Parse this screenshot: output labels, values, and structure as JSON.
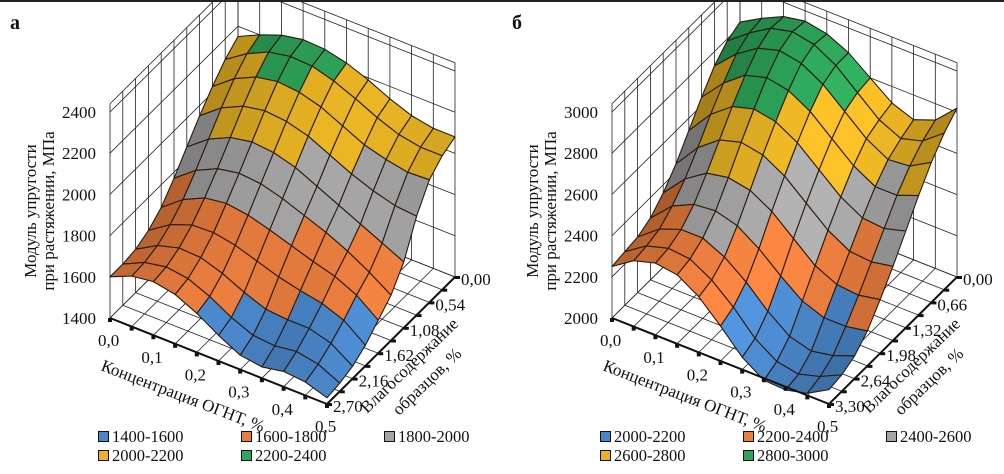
{
  "chart_data": [
    {
      "type": "surface3d",
      "panel_label": "а",
      "title": "",
      "xlabel": "Концентрация ОГНТ, %",
      "ylabel": "Влагосодержание образцов, %",
      "zlabel_line1": "Модуль упругости",
      "zlabel_line2": "при растяжении, МПа",
      "x_ticks": [
        "0,0",
        "0,1",
        "0,2",
        "0,3",
        "0,4",
        "0,5"
      ],
      "y_ticks": [
        "0,00",
        "0,54",
        "1,08",
        "1,62",
        "2,16",
        "2,70"
      ],
      "z_ticks": [
        "1400",
        "1600",
        "1800",
        "2000",
        "2200",
        "2400"
      ],
      "xlim": [
        0,
        0.5
      ],
      "ylim": [
        0,
        2.7
      ],
      "zlim": [
        1400,
        2400
      ],
      "legend": [
        {
          "label": "1400-1600",
          "color": "#4a86c8"
        },
        {
          "label": "1600-1800",
          "color": "#e87d3e"
        },
        {
          "label": "1800-2000",
          "color": "#a5a5a5"
        },
        {
          "label": "2000-2200",
          "color": "#e8b424"
        },
        {
          "label": "2200-2400",
          "color": "#2ea65a"
        }
      ],
      "x": [
        0,
        0.05,
        0.1,
        0.15,
        0.2,
        0.25,
        0.3,
        0.35,
        0.4,
        0.45,
        0.5
      ],
      "y": [
        0,
        0.27,
        0.54,
        0.81,
        1.08,
        1.35,
        1.62,
        1.89,
        2.16,
        2.43,
        2.7
      ],
      "z": [
        [
          2150,
          2200,
          2240,
          2260,
          2255,
          2230,
          2190,
          2140,
          2100,
          2080,
          2080
        ],
        [
          2100,
          2170,
          2220,
          2240,
          2235,
          2205,
          2160,
          2110,
          2070,
          2050,
          2050
        ],
        [
          2030,
          2110,
          2160,
          2180,
          2170,
          2140,
          2090,
          2040,
          2010,
          1990,
          1995
        ],
        [
          1950,
          2030,
          2080,
          2100,
          2090,
          2060,
          2010,
          1960,
          1920,
          1890,
          1880
        ],
        [
          1860,
          1940,
          1990,
          2010,
          2000,
          1970,
          1920,
          1870,
          1820,
          1770,
          1720
        ],
        [
          1770,
          1850,
          1900,
          1920,
          1910,
          1880,
          1840,
          1800,
          1750,
          1690,
          1620
        ],
        [
          1690,
          1770,
          1820,
          1835,
          1820,
          1790,
          1755,
          1720,
          1690,
          1640,
          1560
        ],
        [
          1640,
          1710,
          1750,
          1755,
          1735,
          1700,
          1665,
          1640,
          1620,
          1580,
          1500
        ],
        [
          1610,
          1670,
          1700,
          1695,
          1660,
          1610,
          1570,
          1560,
          1560,
          1530,
          1460
        ],
        [
          1600,
          1650,
          1670,
          1655,
          1610,
          1550,
          1505,
          1495,
          1510,
          1490,
          1440
        ],
        [
          1600,
          1645,
          1660,
          1640,
          1590,
          1525,
          1470,
          1455,
          1475,
          1465,
          1430
        ]
      ]
    },
    {
      "type": "surface3d",
      "panel_label": "б",
      "title": "",
      "xlabel": "Концентрация ОГНТ, %",
      "ylabel": "Влагосодержание образцов, %",
      "zlabel_line1": "Модуль упругости",
      "zlabel_line2": "при растяжении, МПа",
      "x_ticks": [
        "0,0",
        "0,1",
        "0,2",
        "0,3",
        "0,4",
        "0,5"
      ],
      "y_ticks": [
        "0,00",
        "0,66",
        "1,32",
        "1,98",
        "2,64",
        "3,30"
      ],
      "z_ticks": [
        "2000",
        "2200",
        "2400",
        "2600",
        "2800",
        "3000"
      ],
      "xlim": [
        0,
        0.5
      ],
      "ylim": [
        0,
        3.3
      ],
      "zlim": [
        2000,
        3000
      ],
      "legend": [
        {
          "label": "2000-2200",
          "color": "#4a86c8"
        },
        {
          "label": "2200-2400",
          "color": "#e87d3e"
        },
        {
          "label": "2400-2600",
          "color": "#a5a5a5"
        },
        {
          "label": "2600-2800",
          "color": "#e8b424"
        },
        {
          "label": "2800-3000",
          "color": "#2ea65a"
        }
      ],
      "x": [
        0,
        0.05,
        0.1,
        0.15,
        0.2,
        0.25,
        0.3,
        0.35,
        0.4,
        0.45,
        0.5
      ],
      "y": [
        0,
        0.33,
        0.66,
        0.99,
        1.32,
        1.65,
        1.98,
        2.31,
        2.64,
        2.97,
        3.3
      ],
      "z": [
        [
          2820,
          2880,
          2930,
          2950,
          2930,
          2880,
          2800,
          2720,
          2680,
          2720,
          2820
        ],
        [
          2790,
          2870,
          2935,
          2960,
          2940,
          2880,
          2790,
          2700,
          2650,
          2680,
          2760
        ],
        [
          2730,
          2830,
          2900,
          2930,
          2910,
          2850,
          2760,
          2670,
          2610,
          2620,
          2680
        ],
        [
          2640,
          2750,
          2830,
          2860,
          2840,
          2780,
          2690,
          2600,
          2540,
          2540,
          2580
        ],
        [
          2540,
          2660,
          2740,
          2770,
          2750,
          2690,
          2600,
          2510,
          2450,
          2440,
          2470
        ],
        [
          2440,
          2560,
          2640,
          2670,
          2650,
          2590,
          2500,
          2410,
          2350,
          2340,
          2360
        ],
        [
          2360,
          2470,
          2540,
          2560,
          2540,
          2480,
          2390,
          2300,
          2250,
          2240,
          2260
        ],
        [
          2300,
          2400,
          2450,
          2460,
          2430,
          2360,
          2270,
          2190,
          2150,
          2150,
          2170
        ],
        [
          2270,
          2350,
          2390,
          2390,
          2340,
          2260,
          2160,
          2080,
          2050,
          2070,
          2110
        ],
        [
          2260,
          2330,
          2360,
          2350,
          2290,
          2200,
          2090,
          2020,
          2000,
          2030,
          2080
        ],
        [
          2250,
          2320,
          2350,
          2335,
          2270,
          2170,
          2060,
          1990,
          1985,
          2010,
          2070
        ]
      ]
    }
  ]
}
